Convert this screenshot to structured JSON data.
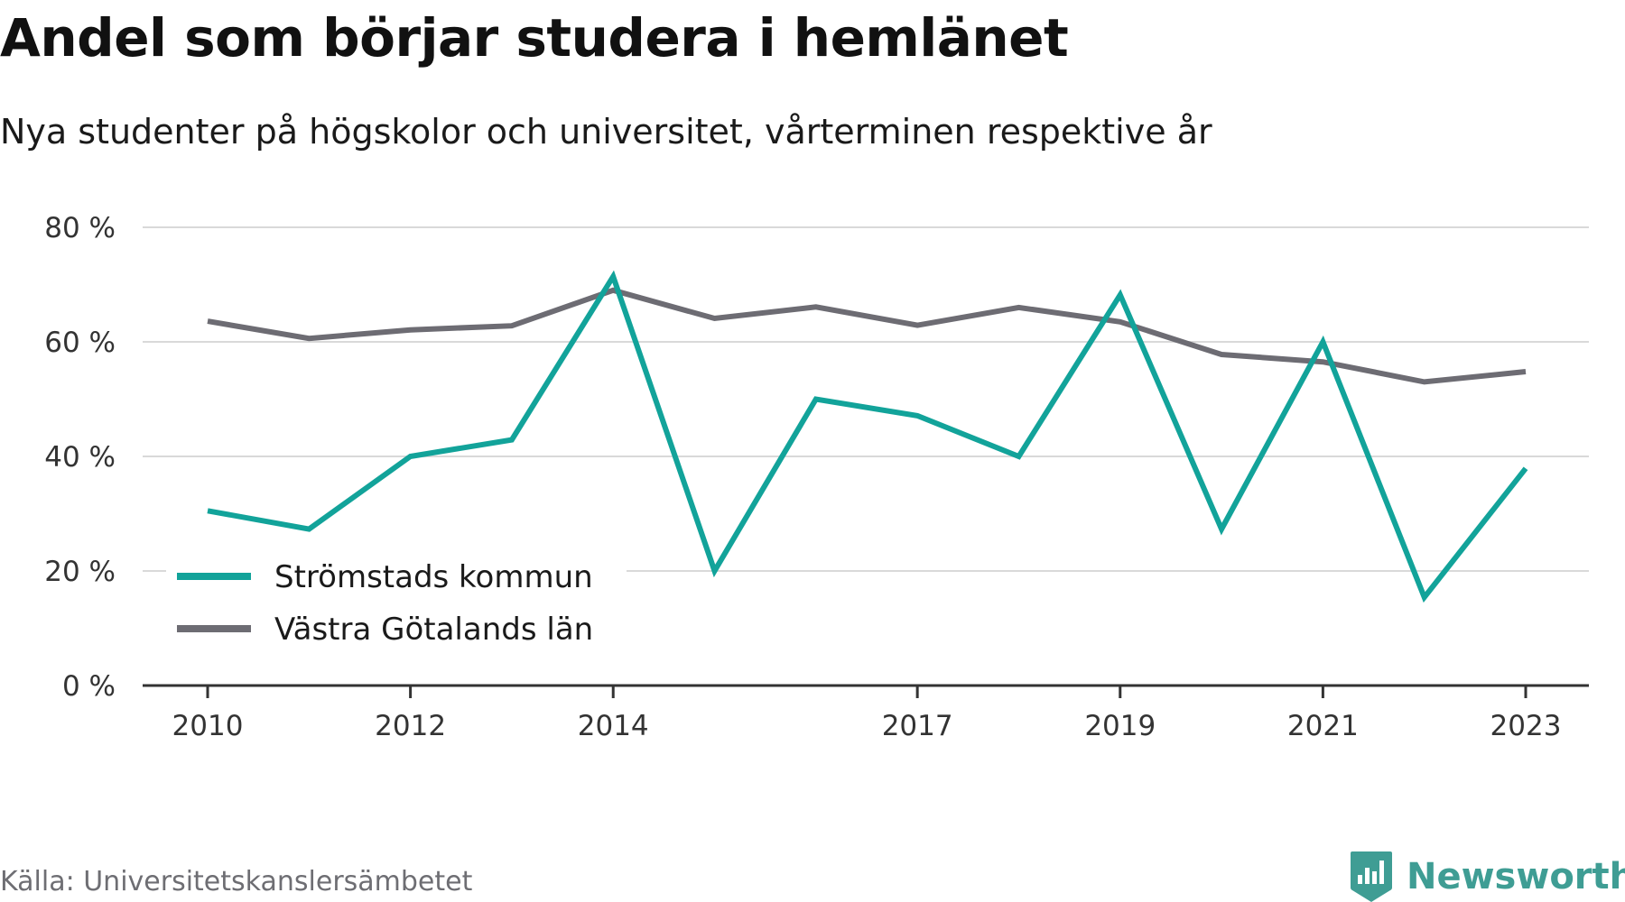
{
  "header": {
    "title": "Andel som börjar studera i hemlänet",
    "subtitle": "Nya studenter på högskolor och universitet, vårterminen respektive år"
  },
  "footer": {
    "source": "Källa: Universitetskanslersämbetet",
    "brand": "Newsworthy",
    "brand_icon": "bar-chart-badge-icon",
    "brand_color": "#3f9d94"
  },
  "chart_data": {
    "type": "line",
    "x": [
      2010,
      2011,
      2012,
      2013,
      2014,
      2015,
      2016,
      2017,
      2018,
      2019,
      2020,
      2021,
      2022,
      2023
    ],
    "x_tick_labels": [
      "2010",
      "2012",
      "2014",
      "2017",
      "2019",
      "2021",
      "2023"
    ],
    "x_tick_values": [
      2010,
      2012,
      2014,
      2017,
      2019,
      2021,
      2023
    ],
    "ylim": [
      0,
      80
    ],
    "y_ticks": [
      0,
      20,
      40,
      60,
      80
    ],
    "y_tick_labels": [
      "0 %",
      "20 %",
      "40 %",
      "60 %",
      "80 %"
    ],
    "grid": true,
    "legend_position": "bottom-left",
    "series": [
      {
        "name": "Strömstads kommun",
        "color": "#12a39a",
        "values": [
          30.5,
          27.3,
          40.0,
          42.9,
          71.4,
          20.0,
          50.0,
          47.1,
          40.0,
          68.2,
          27.3,
          60.0,
          15.4,
          37.9
        ]
      },
      {
        "name": "Västra Götalands län",
        "color": "#6d6c73",
        "values": [
          63.6,
          60.6,
          62.1,
          62.8,
          69.0,
          64.1,
          66.1,
          62.9,
          66.0,
          63.5,
          57.8,
          56.5,
          53.0,
          54.8
        ]
      }
    ]
  }
}
